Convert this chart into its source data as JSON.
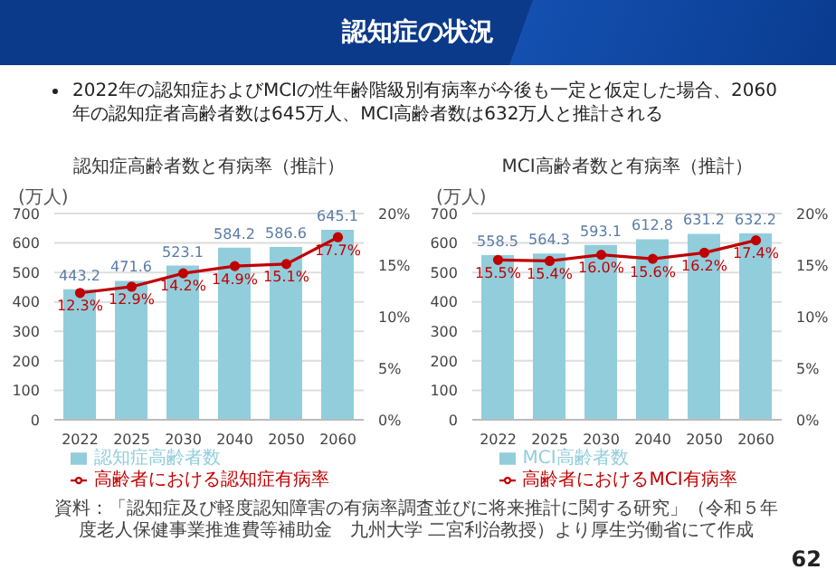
{
  "chart_data": [
    {
      "type": "bar",
      "title": "認知症高齢者数と有病率（推計）",
      "ylabel": "(万人)",
      "annotations": [
        "認知症の状況",
        "2022年の認知症およびMCIの性年齢階級別有病率が今後も一定と仮定した場合、2060年の認知症者高齢者数は645万人、MCI高齢者数は632万人と推計される",
        "資料：「認知症及び軽度認知障害の有病率調査並びに将来推計に関する研究」（令和５年度老人保健事業推進費等補助金　九州大学 二宮利治教授）より厚生労働省にて作成",
        "62"
      ],
      "categories": [
        "2022",
        "2025",
        "2030",
        "2040",
        "2050",
        "2060"
      ],
      "series": [
        {
          "name": "認知症高齢者数",
          "color": "#92cddc",
          "values": [
            443.2,
            471.6,
            523.1,
            584.2,
            586.6,
            645.1
          ],
          "value_labels": [
            "443.2",
            "471.6",
            "523.1",
            "584.2",
            "586.6",
            "645.1"
          ]
        },
        {
          "name": "高齢者における認知症有病率",
          "type": "line",
          "axis": "y2",
          "color": "#c00000",
          "values": [
            12.3,
            12.9,
            14.2,
            14.9,
            15.1,
            17.7
          ],
          "value_labels": [
            "12.3%",
            "12.9%",
            "14.2%",
            "14.9%",
            "15.1%",
            "17.7%"
          ]
        }
      ],
      "ylim": [
        0,
        700
      ],
      "yticks": [
        0,
        100,
        200,
        300,
        400,
        500,
        600,
        700
      ],
      "y2lim": [
        0,
        20
      ],
      "y2ticks": [
        {
          "value": 0,
          "label": "0%"
        },
        {
          "value": 5,
          "label": "5%"
        },
        {
          "value": 10,
          "label": "10%"
        },
        {
          "value": 15,
          "label": "15%"
        },
        {
          "value": 20,
          "label": "20%"
        }
      ],
      "grid": "y",
      "legend": "bottom",
      "marker": "circle"
    },
    {
      "type": "bar",
      "title": "MCI高齢者数と有病率（推計）",
      "ylabel": "(万人)",
      "categories": [
        "2022",
        "2025",
        "2030",
        "2040",
        "2050",
        "2060"
      ],
      "series": [
        {
          "name": "MCI高齢者数",
          "color": "#92cddc",
          "values": [
            558.5,
            564.3,
            593.1,
            612.8,
            631.2,
            632.2
          ],
          "value_labels": [
            "558.5",
            "564.3",
            "593.1",
            "612.8",
            "631.2",
            "632.2"
          ]
        },
        {
          "name": "高齢者におけるMCI有病率",
          "type": "line",
          "axis": "y2",
          "color": "#c00000",
          "values": [
            15.5,
            15.4,
            16.0,
            15.6,
            16.2,
            17.4
          ],
          "value_labels": [
            "15.5%",
            "15.4%",
            "16.0%",
            "15.6%",
            "16.2%",
            "17.4%"
          ]
        }
      ],
      "ylim": [
        0,
        700
      ],
      "yticks": [
        0,
        100,
        200,
        300,
        400,
        500,
        600,
        700
      ],
      "y2lim": [
        0,
        20
      ],
      "y2ticks": [
        {
          "value": 0,
          "label": "0%"
        },
        {
          "value": 5,
          "label": "5%"
        },
        {
          "value": 10,
          "label": "10%"
        },
        {
          "value": 15,
          "label": "15%"
        },
        {
          "value": 20,
          "label": "20%"
        }
      ],
      "grid": "y",
      "legend": "bottom",
      "marker": "circle"
    }
  ]
}
